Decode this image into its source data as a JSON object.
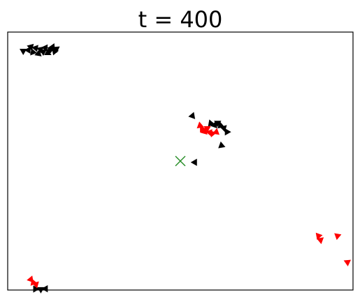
{
  "chart_data": {
    "type": "scatter",
    "title": "t = 400",
    "xlabel": "",
    "ylabel": "",
    "xlim": [
      0,
      100
    ],
    "ylim": [
      0,
      100
    ],
    "axis_ticks": false,
    "grid": false,
    "marker": "triangle",
    "target": {
      "x": 50.0,
      "y": 50.0,
      "marker": "x",
      "color": "#228b22"
    },
    "series": [
      {
        "color": "#000000",
        "points": [
          {
            "x": 4.5,
            "y": 92.7,
            "dir": 300
          },
          {
            "x": 6.0,
            "y": 93.0,
            "dir": 30
          },
          {
            "x": 6.7,
            "y": 94.3,
            "dir": 45
          },
          {
            "x": 7.3,
            "y": 92.2,
            "dir": 100
          },
          {
            "x": 8.1,
            "y": 93.8,
            "dir": 40
          },
          {
            "x": 8.9,
            "y": 91.6,
            "dir": 130
          },
          {
            "x": 9.5,
            "y": 93.3,
            "dir": 50
          },
          {
            "x": 10.3,
            "y": 92.4,
            "dir": 60
          },
          {
            "x": 10.9,
            "y": 93.9,
            "dir": 35
          },
          {
            "x": 11.6,
            "y": 91.9,
            "dir": 120
          },
          {
            "x": 12.4,
            "y": 93.1,
            "dir": 70
          },
          {
            "x": 13.0,
            "y": 94.2,
            "dir": 25
          },
          {
            "x": 13.6,
            "y": 92.5,
            "dir": 80
          },
          {
            "x": 14.1,
            "y": 93.5,
            "dir": 55
          },
          {
            "x": 53.5,
            "y": 67.5,
            "dir": 20
          },
          {
            "x": 58.8,
            "y": 64.6,
            "dir": 100
          },
          {
            "x": 59.9,
            "y": 63.9,
            "dir": 140
          },
          {
            "x": 60.8,
            "y": 64.8,
            "dir": 60
          },
          {
            "x": 61.7,
            "y": 63.7,
            "dir": 110
          },
          {
            "x": 62.6,
            "y": 62.8,
            "dir": 45
          },
          {
            "x": 63.5,
            "y": 61.3,
            "dir": 90
          },
          {
            "x": 61.9,
            "y": 56.0,
            "dir": 230
          },
          {
            "x": 54.2,
            "y": 49.5,
            "dir": 270
          },
          {
            "x": 8.0,
            "y": 0.4,
            "dir": 330
          },
          {
            "x": 9.6,
            "y": 0.3,
            "dir": 60
          },
          {
            "x": 11.0,
            "y": 0.5,
            "dir": 30
          }
        ]
      },
      {
        "color": "#ff0000",
        "points": [
          {
            "x": 55.7,
            "y": 63.7,
            "dir": 350
          },
          {
            "x": 56.3,
            "y": 62.4,
            "dir": 330
          },
          {
            "x": 57.0,
            "y": 61.4,
            "dir": 15
          },
          {
            "x": 57.8,
            "y": 62.7,
            "dir": 300
          },
          {
            "x": 58.5,
            "y": 61.1,
            "dir": 40
          },
          {
            "x": 59.3,
            "y": 60.7,
            "dir": 320
          },
          {
            "x": 60.4,
            "y": 61.2,
            "dir": 10
          },
          {
            "x": 6.7,
            "y": 4.1,
            "dir": 20
          },
          {
            "x": 7.4,
            "y": 2.9,
            "dir": 340
          },
          {
            "x": 8.2,
            "y": 2.2,
            "dir": 45
          },
          {
            "x": 90.0,
            "y": 21.0,
            "dir": 200
          },
          {
            "x": 90.6,
            "y": 19.4,
            "dir": 170
          },
          {
            "x": 95.5,
            "y": 21.0,
            "dir": 190
          },
          {
            "x": 98.4,
            "y": 10.8,
            "dir": 175
          }
        ]
      }
    ]
  }
}
